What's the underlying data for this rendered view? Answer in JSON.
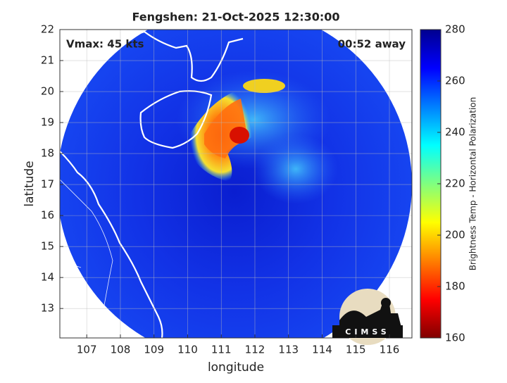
{
  "map": {
    "title": "Fengshen: 21-Oct-2025 12:30:00",
    "intensity": "Vmax: 45 kts",
    "time_away": "00:52 away",
    "xlabel": "longitude",
    "ylabel": "latitude",
    "xlim": [
      106.2,
      116.67
    ],
    "ylim": [
      12.05,
      22
    ],
    "xticks": [
      107,
      108,
      109,
      110,
      111,
      112,
      113,
      114,
      115,
      116
    ],
    "yticks": [
      13,
      14,
      15,
      16,
      17,
      18,
      19,
      20,
      21,
      22
    ],
    "grid": true,
    "colorbar": {
      "label": "Brightness Temp - Horizontal Polarization",
      "lim": [
        160,
        280
      ],
      "ticks": [
        160,
        180,
        200,
        220,
        240,
        260,
        280
      ]
    },
    "logo": "CIMSS"
  }
}
